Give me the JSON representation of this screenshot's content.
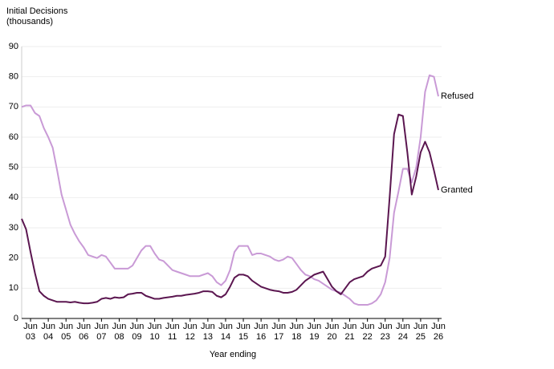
{
  "chart_data": {
    "type": "line",
    "ylabel": "Initial Decisions (thousands)",
    "xlabel": "Year ending",
    "categories": [
      null,
      null,
      "Jun 03",
      null,
      null,
      null,
      "Jun 04",
      null,
      null,
      null,
      "Jun 05",
      null,
      null,
      null,
      "Jun 06",
      null,
      null,
      null,
      "Jun 07",
      null,
      null,
      null,
      "Jun 08",
      null,
      null,
      null,
      "Jun 09",
      null,
      null,
      null,
      "Jun 10",
      null,
      null,
      null,
      "Jun 11",
      null,
      null,
      null,
      "Jun 12",
      null,
      null,
      null,
      "Jun 13",
      null,
      null,
      null,
      "Jun 14",
      null,
      null,
      null,
      "Jun 15",
      null,
      null,
      null,
      "Jun 16",
      null,
      null,
      null,
      "Jun 17",
      null,
      null,
      null,
      "Jun 18",
      null,
      null,
      null,
      "Jun 19",
      null,
      null,
      null,
      "Jun 20",
      null,
      null,
      null,
      "Jun 21",
      null,
      null,
      null,
      "Jun 22",
      null,
      null,
      null,
      "Jun 23",
      null,
      null,
      null,
      "Jun 24",
      null,
      null,
      null,
      "Jun 25",
      null,
      null,
      null,
      "Jun 26"
    ],
    "series": [
      {
        "name": "Refused",
        "color": "#c99ad6",
        "values": [
          70,
          70.5,
          70.5,
          68,
          67,
          63,
          60,
          56.5,
          49,
          41,
          36,
          31,
          28,
          25.5,
          23.5,
          21,
          20.5,
          20,
          21,
          20.5,
          18.5,
          16.5,
          16.5,
          16.5,
          16.5,
          17.5,
          20,
          22.5,
          24,
          24,
          21.5,
          19.5,
          19,
          17.5,
          16,
          15.5,
          15,
          14.5,
          14,
          14,
          14,
          14.5,
          15,
          14,
          12,
          11,
          12.5,
          16,
          22,
          24,
          24,
          24,
          21,
          21.5,
          21.5,
          21,
          20.5,
          19.5,
          19,
          19.5,
          20.5,
          20,
          18,
          16,
          14.5,
          14,
          13,
          12.5,
          11.5,
          10.5,
          9.5,
          9,
          8.5,
          7.5,
          6.5,
          5,
          4.5,
          4.5,
          4.5,
          5,
          6,
          8,
          12,
          20,
          35,
          42,
          49.5,
          49.5,
          45,
          50,
          60,
          75,
          80.5,
          80,
          73.5
        ]
      },
      {
        "name": "Granted",
        "color": "#5b1650",
        "values": [
          33,
          29.5,
          22,
          15,
          9,
          7.5,
          6.5,
          6,
          5.5,
          5.5,
          5.5,
          5.3,
          5.5,
          5.2,
          5,
          5,
          5.2,
          5.5,
          6.5,
          6.8,
          6.5,
          7,
          6.8,
          7,
          8,
          8.2,
          8.5,
          8.5,
          7.5,
          7,
          6.5,
          6.5,
          6.8,
          7,
          7.2,
          7.5,
          7.5,
          7.8,
          8,
          8.2,
          8.5,
          9,
          9,
          8.8,
          7.5,
          7,
          8,
          10.5,
          13.5,
          14.5,
          14.5,
          14,
          12.5,
          11.5,
          10.5,
          10,
          9.5,
          9.2,
          9,
          8.5,
          8.5,
          8.8,
          9.5,
          11,
          12.5,
          13.5,
          14.5,
          15,
          15.5,
          13,
          10.5,
          9,
          8,
          10,
          12,
          13,
          13.5,
          14,
          15.5,
          16.5,
          17,
          17.5,
          20.5,
          40,
          61,
          67.5,
          67,
          55,
          41,
          47,
          55,
          58.5,
          55,
          49,
          42.5
        ]
      }
    ],
    "ylim": [
      0,
      90
    ],
    "yticks": [
      0,
      10,
      20,
      30,
      40,
      50,
      60,
      70,
      80,
      90
    ],
    "grid": true
  }
}
